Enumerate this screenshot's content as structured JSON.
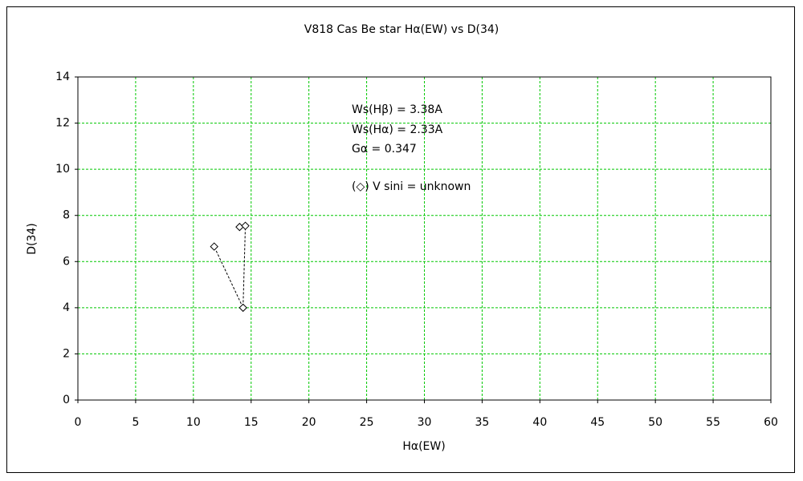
{
  "chart_data": {
    "type": "scatter",
    "title": "V818 Cas    Be star    Hα(EW) vs D(34)",
    "x_label": "Hα(EW)",
    "y_label": "D(34)",
    "annotations": [
      "Ws(Hβ) = 3.38A",
      "Ws(Hα) = 2.33A",
      "Gα = 0.347",
      "(◇) V sini = unknown"
    ],
    "x": [
      14.0,
      14.5,
      14.3,
      11.8
    ],
    "values": [
      7.5,
      7.55,
      4.0,
      6.65
    ],
    "color": "#000000",
    "connect": true,
    "grid": true,
    "grid_color": "#00c800",
    "xlim": [
      0,
      60
    ],
    "xticks": [
      0,
      5,
      10,
      15,
      20,
      25,
      30,
      35,
      40,
      45,
      50,
      55,
      60
    ],
    "ylim": [
      0,
      14
    ],
    "yticks": [
      0,
      2,
      4,
      6,
      8,
      10,
      12,
      14
    ]
  }
}
